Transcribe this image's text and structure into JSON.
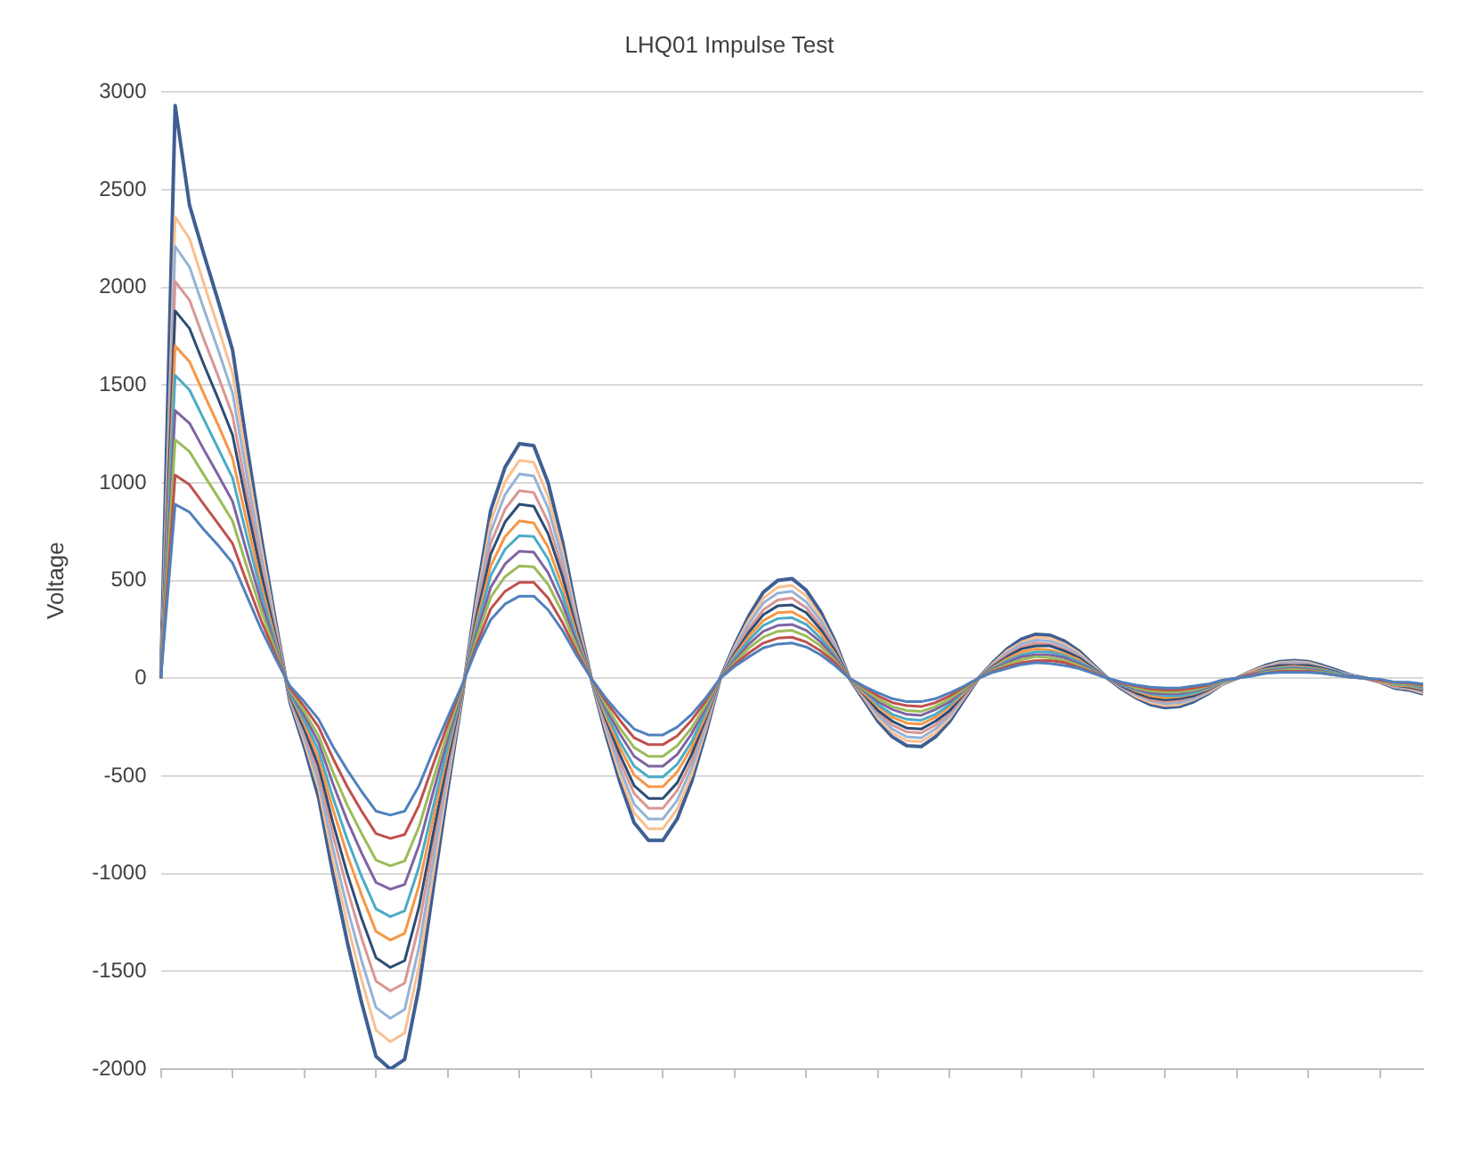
{
  "chart_data": {
    "type": "line",
    "title": "LHQ01 Impulse Test",
    "ylabel": "Voltage",
    "categories": [
      null,
      null,
      null,
      null,
      null,
      null,
      null,
      null,
      null,
      null,
      null,
      null,
      null,
      null,
      null,
      null,
      null,
      null,
      null,
      null,
      null,
      null,
      null,
      null,
      null,
      null,
      null,
      null,
      null,
      null,
      null,
      null,
      null,
      null,
      null,
      null,
      null,
      null,
      null,
      null,
      null,
      null,
      null,
      null,
      null,
      null,
      null,
      null,
      null,
      null,
      null,
      null,
      null,
      null,
      null,
      null,
      null,
      null,
      null,
      null,
      null,
      null,
      null,
      null,
      null,
      null,
      null,
      null,
      null,
      null,
      null,
      null,
      null,
      null,
      null,
      null,
      null,
      null,
      null,
      null,
      null,
      null,
      null,
      null,
      null,
      null,
      null,
      null,
      null
    ],
    "ylim": [
      -2000,
      3000
    ],
    "yticks": [
      -2000,
      -1500,
      -1000,
      -500,
      0,
      500,
      1000,
      1500,
      2000,
      2500,
      3000
    ],
    "grid": "y",
    "legend": false,
    "marker": "none",
    "line_style": "solid",
    "tick_labels": "y",
    "series": [
      {
        "color": "#4f81bd",
        "values": [
          0,
          890,
          850,
          760,
          680,
          590,
          420,
          250,
          100,
          -40,
          -120,
          -210,
          -350,
          -470,
          -580,
          -680,
          -700,
          -680,
          -550,
          -370,
          -200,
          -35,
          150,
          300,
          380,
          420,
          420,
          350,
          245,
          115,
          0,
          -100,
          -185,
          -260,
          -290,
          -290,
          -250,
          -185,
          -100,
          0,
          60,
          110,
          155,
          175,
          180,
          160,
          120,
          65,
          0,
          -40,
          -75,
          -105,
          -120,
          -120,
          -105,
          -75,
          -40,
          0,
          30,
          50,
          70,
          80,
          75,
          65,
          50,
          25,
          0,
          -20,
          -35,
          -45,
          -50,
          -50,
          -40,
          -30,
          -10,
          0,
          10,
          25,
          30,
          30,
          30,
          25,
          15,
          5,
          0,
          -5,
          -20,
          -20,
          -30
        ]
      },
      {
        "color": "#c0504d",
        "values": [
          0,
          1040,
          990,
          890,
          790,
          690,
          490,
          295,
          120,
          -50,
          -145,
          -250,
          -410,
          -555,
          -680,
          -795,
          -820,
          -800,
          -650,
          -440,
          -235,
          -40,
          170,
          355,
          445,
          490,
          490,
          410,
          285,
          135,
          0,
          -115,
          -215,
          -305,
          -340,
          -340,
          -295,
          -215,
          -115,
          0,
          70,
          130,
          180,
          205,
          210,
          185,
          140,
          80,
          0,
          -45,
          -90,
          -125,
          -140,
          -145,
          -125,
          -90,
          -45,
          0,
          35,
          60,
          80,
          90,
          90,
          80,
          55,
          30,
          0,
          -25,
          -40,
          -55,
          -60,
          -60,
          -50,
          -35,
          -10,
          0,
          15,
          25,
          35,
          35,
          35,
          25,
          15,
          5,
          0,
          -10,
          -20,
          -25,
          -35
        ]
      },
      {
        "color": "#9bbb59",
        "values": [
          0,
          1220,
          1160,
          1040,
          925,
          805,
          570,
          345,
          140,
          -60,
          -170,
          -295,
          -480,
          -650,
          -795,
          -930,
          -960,
          -935,
          -760,
          -515,
          -275,
          -50,
          200,
          415,
          520,
          575,
          570,
          480,
          335,
          160,
          0,
          -135,
          -255,
          -355,
          -400,
          -400,
          -345,
          -255,
          -135,
          0,
          80,
          155,
          210,
          240,
          245,
          215,
          165,
          90,
          0,
          -55,
          -105,
          -145,
          -165,
          -170,
          -145,
          -105,
          -55,
          0,
          40,
          70,
          95,
          110,
          105,
          90,
          65,
          35,
          0,
          -25,
          -50,
          -65,
          -70,
          -70,
          -60,
          -40,
          -15,
          0,
          15,
          30,
          40,
          45,
          40,
          30,
          20,
          5,
          0,
          -10,
          -25,
          -30,
          -40
        ]
      },
      {
        "color": "#8064a2",
        "values": [
          0,
          1370,
          1305,
          1170,
          1040,
          905,
          645,
          390,
          155,
          -65,
          -190,
          -330,
          -540,
          -730,
          -895,
          -1045,
          -1080,
          -1055,
          -855,
          -580,
          -310,
          -55,
          225,
          465,
          585,
          650,
          645,
          540,
          380,
          180,
          0,
          -150,
          -285,
          -400,
          -450,
          -450,
          -390,
          -285,
          -150,
          0,
          90,
          175,
          240,
          270,
          275,
          245,
          185,
          105,
          0,
          -60,
          -120,
          -160,
          -185,
          -190,
          -160,
          -120,
          -60,
          0,
          45,
          80,
          110,
          120,
          120,
          105,
          75,
          40,
          0,
          -30,
          -55,
          -75,
          -80,
          -80,
          -65,
          -45,
          -15,
          0,
          20,
          35,
          45,
          50,
          45,
          35,
          20,
          10,
          0,
          -10,
          -25,
          -30,
          -45
        ]
      },
      {
        "color": "#4bacc6",
        "values": [
          0,
          1550,
          1475,
          1325,
          1175,
          1025,
          725,
          440,
          175,
          -75,
          -215,
          -370,
          -610,
          -825,
          -1015,
          -1180,
          -1220,
          -1190,
          -965,
          -655,
          -350,
          -60,
          255,
          525,
          660,
          730,
          725,
          610,
          425,
          200,
          0,
          -170,
          -325,
          -450,
          -505,
          -505,
          -440,
          -325,
          -170,
          0,
          105,
          195,
          270,
          305,
          310,
          275,
          205,
          115,
          0,
          -65,
          -135,
          -185,
          -210,
          -215,
          -185,
          -135,
          -65,
          0,
          50,
          90,
          120,
          135,
          135,
          115,
          85,
          45,
          0,
          -35,
          -60,
          -80,
          -90,
          -90,
          -75,
          -50,
          -20,
          0,
          20,
          40,
          50,
          55,
          50,
          40,
          25,
          10,
          0,
          -10,
          -30,
          -35,
          -50
        ]
      },
      {
        "color": "#f79646",
        "values": [
          0,
          1700,
          1620,
          1455,
          1295,
          1125,
          800,
          480,
          195,
          -80,
          -235,
          -410,
          -670,
          -905,
          -1110,
          -1295,
          -1340,
          -1305,
          -1060,
          -715,
          -380,
          -65,
          280,
          575,
          725,
          805,
          795,
          670,
          470,
          220,
          0,
          -190,
          -355,
          -495,
          -555,
          -555,
          -480,
          -355,
          -190,
          0,
          115,
          215,
          295,
          335,
          340,
          300,
          230,
          125,
          0,
          -75,
          -145,
          -200,
          -230,
          -235,
          -200,
          -145,
          -75,
          0,
          55,
          100,
          135,
          150,
          145,
          125,
          95,
          45,
          0,
          -35,
          -65,
          -90,
          -100,
          -95,
          -80,
          -55,
          -20,
          0,
          25,
          45,
          55,
          60,
          55,
          45,
          25,
          10,
          0,
          -15,
          -35,
          -40,
          -55
        ]
      },
      {
        "color": "#2c4d75",
        "values": [
          0,
          1880,
          1790,
          1605,
          1430,
          1245,
          880,
          535,
          215,
          -90,
          -260,
          -450,
          -740,
          -1000,
          -1230,
          -1430,
          -1480,
          -1445,
          -1170,
          -790,
          -420,
          -75,
          310,
          635,
          800,
          890,
          880,
          740,
          520,
          245,
          0,
          -205,
          -390,
          -550,
          -615,
          -615,
          -535,
          -390,
          -205,
          0,
          125,
          235,
          325,
          370,
          375,
          335,
          250,
          140,
          0,
          -80,
          -165,
          -220,
          -255,
          -260,
          -220,
          -165,
          -80,
          0,
          60,
          110,
          150,
          165,
          165,
          140,
          105,
          50,
          0,
          -40,
          -75,
          -100,
          -110,
          -105,
          -90,
          -60,
          -20,
          0,
          25,
          50,
          65,
          65,
          65,
          50,
          30,
          10,
          0,
          -15,
          -35,
          -45,
          -60
        ]
      },
      {
        "color": "#d99694",
        "values": [
          0,
          2030,
          1935,
          1735,
          1545,
          1345,
          950,
          575,
          230,
          -95,
          -280,
          -490,
          -800,
          -1080,
          -1330,
          -1550,
          -1600,
          -1560,
          -1265,
          -855,
          -455,
          -80,
          335,
          690,
          865,
          960,
          950,
          800,
          560,
          265,
          0,
          -225,
          -425,
          -590,
          -665,
          -665,
          -575,
          -425,
          -225,
          0,
          135,
          255,
          350,
          400,
          410,
          360,
          270,
          150,
          0,
          -90,
          -175,
          -240,
          -275,
          -280,
          -240,
          -175,
          -90,
          0,
          65,
          120,
          160,
          180,
          175,
          150,
          110,
          55,
          0,
          -45,
          -80,
          -110,
          -120,
          -115,
          -95,
          -65,
          -25,
          0,
          30,
          50,
          70,
          70,
          70,
          50,
          30,
          10,
          0,
          -15,
          -40,
          -50,
          -65
        ]
      },
      {
        "color": "#95b3d7",
        "values": [
          0,
          2210,
          2105,
          1890,
          1680,
          1460,
          1035,
          625,
          250,
          -105,
          -305,
          -530,
          -870,
          -1175,
          -1445,
          -1685,
          -1740,
          -1695,
          -1375,
          -930,
          -495,
          -85,
          365,
          750,
          940,
          1045,
          1035,
          870,
          610,
          285,
          0,
          -245,
          -460,
          -645,
          -720,
          -720,
          -625,
          -460,
          -245,
          0,
          150,
          280,
          385,
          435,
          445,
          390,
          295,
          165,
          0,
          -95,
          -190,
          -260,
          -300,
          -305,
          -260,
          -190,
          -95,
          0,
          70,
          130,
          175,
          195,
          190,
          165,
          120,
          60,
          0,
          -50,
          -85,
          -115,
          -130,
          -125,
          -105,
          -70,
          -25,
          0,
          30,
          55,
          75,
          80,
          75,
          55,
          35,
          15,
          0,
          -15,
          -45,
          -50,
          -70
        ]
      },
      {
        "color": "#fac090",
        "values": [
          0,
          2360,
          2250,
          2020,
          1795,
          1560,
          1105,
          670,
          270,
          -110,
          -325,
          -565,
          -930,
          -1255,
          -1545,
          -1800,
          -1860,
          -1815,
          -1470,
          -995,
          -530,
          -95,
          390,
          800,
          1005,
          1115,
          1105,
          930,
          650,
          305,
          0,
          -260,
          -495,
          -690,
          -770,
          -770,
          -670,
          -495,
          -260,
          0,
          160,
          300,
          410,
          465,
          475,
          420,
          315,
          175,
          0,
          -100,
          -205,
          -280,
          -320,
          -325,
          -280,
          -205,
          -100,
          0,
          75,
          140,
          185,
          210,
          205,
          175,
          130,
          65,
          0,
          -50,
          -95,
          -125,
          -140,
          -135,
          -110,
          -75,
          -30,
          0,
          35,
          60,
          80,
          85,
          80,
          60,
          35,
          15,
          0,
          -20,
          -45,
          -55,
          -75
        ]
      },
      {
        "color": "#3e5f93",
        "values": [
          0,
          2930,
          2420,
          2170,
          1930,
          1680,
          1190,
          720,
          290,
          -120,
          -350,
          -610,
          -1000,
          -1350,
          -1660,
          -1935,
          -2000,
          -1950,
          -1580,
          -1070,
          -570,
          -100,
          420,
          860,
          1080,
          1200,
          1190,
          1000,
          700,
          330,
          0,
          -280,
          -530,
          -740,
          -830,
          -830,
          -720,
          -530,
          -280,
          0,
          170,
          320,
          440,
          500,
          510,
          450,
          340,
          190,
          0,
          -110,
          -220,
          -300,
          -345,
          -350,
          -300,
          -220,
          -110,
          0,
          80,
          150,
          200,
          225,
          220,
          190,
          140,
          70,
          0,
          -55,
          -100,
          -135,
          -150,
          -145,
          -120,
          -80,
          -30,
          0,
          35,
          65,
          85,
          90,
          85,
          65,
          40,
          15,
          0,
          -20,
          -50,
          -60,
          -80
        ]
      }
    ]
  }
}
